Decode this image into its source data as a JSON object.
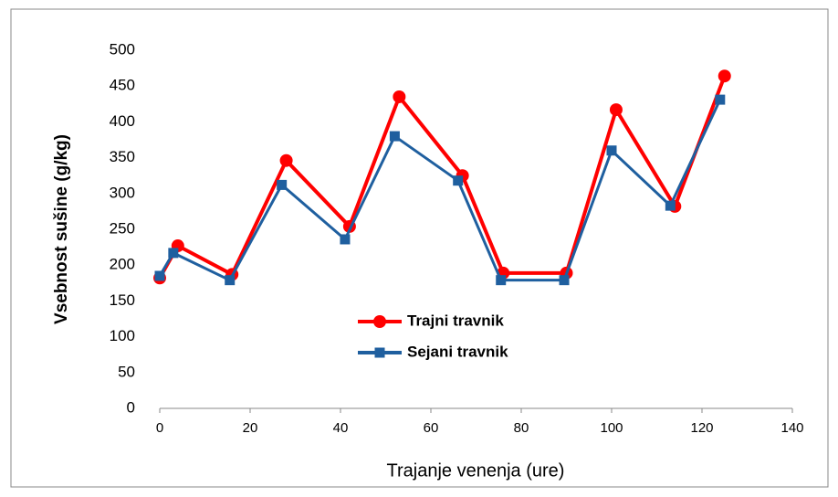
{
  "chart_data": {
    "type": "line",
    "x_label": "Trajanje venenja (ure)",
    "y_label": "Vsebnost sušine (g/kg)",
    "xlim": [
      0,
      140
    ],
    "xticks": [
      0,
      20,
      40,
      60,
      80,
      100,
      120,
      140
    ],
    "ylim": [
      0,
      500
    ],
    "yticks": [
      0,
      50,
      100,
      150,
      200,
      250,
      300,
      350,
      400,
      450,
      500
    ],
    "grid": false,
    "legend": "center",
    "series": [
      {
        "name": "Trajni travnik",
        "color": "#ff0000",
        "marker": "circle",
        "x": [
          0,
          4,
          16,
          28,
          42,
          53,
          67,
          76,
          90,
          101,
          114,
          125
        ],
        "values": [
          182,
          227,
          187,
          346,
          254,
          435,
          325,
          189,
          189,
          417,
          282,
          464
        ]
      },
      {
        "name": "Sejani travnik",
        "color": "#1f5f9f",
        "marker": "square",
        "x": [
          0,
          3,
          15.5,
          27,
          41,
          52,
          66,
          75.5,
          89.5,
          100,
          113,
          124
        ],
        "values": [
          185,
          217,
          179,
          312,
          236,
          380,
          318,
          179,
          179,
          360,
          283,
          431
        ]
      }
    ]
  }
}
